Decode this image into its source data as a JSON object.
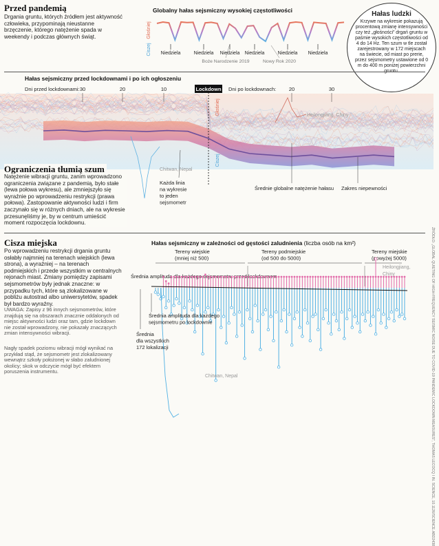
{
  "sections": {
    "pandemic": {
      "title": "Przed pandemią",
      "text": "Drgania gruntu, których źródłem jest aktywność człowieka, przypominają nieustanne brzęczenie, którego natężenie spada w weekendy i podczas głównych świąt."
    },
    "quiet": {
      "title": "Ograniczenia tłumią szum",
      "text": "Natężenie wibracji gruntu, zanim wprowadzono ograniczenia związane z pandemią, było stałe (lewa połowa wykresu), ale zmniejszyło się wyraźnie po wprowadzeniu restrykcji (prawa połowa). Zastopowanie aktywności ludzi i firm zaczynało się w różnych dniach, ale na wykresie przesunęliśmy je, by w centrum umieścić moment rozpoczęcia lockdownu."
    },
    "city": {
      "title": "Cisza miejska",
      "text": "Po wprowadzeniu restrykcji drgania gruntu osłabły najmniej na terenach wiejskich (lewa strona), a wyraźniej – na terenach podmiejskich i przede wszystkim w centralnych rejonach miast. Zmiany pomiędzy zapisami sejsmometrów były jednak znaczne: w przypadku tych, które są zlokalizowane w pobliżu autostrad albo uniwersytetów, spadek był bardzo wyraźny.",
      "note1": "UWAGA: Zapisy z 96 innych sejsmometrów, które znajdują się na obszarach znacznie oddalonych od miejsc aktywności ludzi oraz tam, gdzie lockdown nie został wprowadzony, nie pokazały znaczących zmian intensywności wibracji.",
      "note2": "Nagły spadek poziomu wibracji mógł wynikać na przykład stąd, że sejsmometr jest zlokalizowany wewnątrz szkoły położonej w słabo zaludnionej okolicy; skok w odczycie mógł być efektem poruszenia instrumentu."
    }
  },
  "human_noise": {
    "title": "Hałas ludzki",
    "text": "Krzywe na wykresie pokazują procentową zmianę intensywności czy też „głośności” drgań gruntu w paśmie wysokich częstotliwości od 4 do 14 Hz. Ten szum w tle został zarejestrowany w 172 miejscach na świecie, od miast po prerie, przez sejsmometry ustawione od 0 m do 400 m poniżej powierzchni gruntu."
  },
  "source": "ŹRÓDŁO: „GLOBAL QUIETING OF HIGH-FREQUENCY SEISMIC NOISE DUE TO COVID-19 PANDEMIC LOCKDOWN MEASURES”, THOMAS LECOCQ I IN. SCIENCE, 10.1126/SCIENCE.ABD2438",
  "chart_data": [
    {
      "type": "line",
      "title": "Globalny hałas sejsmiczny wysokiej częstotliwości",
      "ylabel_top": "Głośniej",
      "ylabel_bottom": "Ciszej",
      "x_labels": [
        "Niedziela",
        "Niedziela",
        "Niedziela",
        "Niedziela",
        "Niedziela",
        "Niedziela"
      ],
      "annotations": [
        "Boże Narodzenie 2019",
        "Nowy Rok 2020"
      ],
      "series": [
        {
          "values": [
            0.8,
            0.85,
            0.82,
            0.2,
            0.85,
            0.83,
            0.84,
            0.2,
            0.82,
            0.84,
            0.8,
            0.25,
            0.78,
            0.62,
            0.28,
            0.7,
            0.72,
            0.3,
            0.15,
            0.65,
            0.8,
            0.2,
            0.82,
            0.85,
            0.83,
            0.2,
            0.84,
            0.82,
            0.8,
            0.2,
            0.82,
            0.84
          ]
        }
      ]
    },
    {
      "type": "line",
      "title": "Hałas sejsmiczny przed lockdownami i po ich ogłoszeniu",
      "x_label_before": "Dni przed lockdownami:",
      "x_label_after": "Dni po lockdownach:",
      "x_ticks_before": [
        "30",
        "20",
        "10"
      ],
      "x_ticks_after": [
        "20",
        "30"
      ],
      "center_label": "Lockdown",
      "ylabel_top": "Głośniej",
      "ylabel_bottom": "Ciszej",
      "annotations": [
        "Heilongjiang, Chiny",
        "Chitwan, Nepal",
        "Każda linia na wykresie to jeden sejsmometr",
        "Średnie globalne natężenie hałasu",
        "Zakres niepewności"
      ],
      "series": [
        {
          "name": "Średnie globalne natężenie hałasu",
          "x": [
            -40,
            -35,
            -30,
            -25,
            -20,
            -15,
            -10,
            -5,
            0,
            5,
            10,
            15,
            20,
            25,
            30,
            35,
            40,
            45
          ],
          "values": [
            0,
            0.5,
            -0.5,
            0.3,
            0,
            -0.5,
            0.2,
            -0.3,
            -5,
            -12,
            -15,
            -16,
            -17,
            -16,
            -18,
            -17,
            -16,
            -17
          ]
        }
      ]
    },
    {
      "type": "bar",
      "title": "Hałas sejsmiczny w zależności od gęstości zaludnienia",
      "subtitle": "(liczba osób na km²)",
      "groups": [
        "Tereny wiejskie (mniej niż 500)",
        "Tereny podmiejskie (od 500 do 5000)",
        "Tereny miejskie (powyżej 5000)"
      ],
      "annotations": [
        "Średnia amplituda dla każdego sejsmometru przed lockdownem",
        "Średnia amplituda dla każdego sejsmometru po lockdownie",
        "Średnia dla wszystkich 172 lokalizacji",
        "Heilongjiang, Chiny",
        "Chitwan, Nepal"
      ],
      "series": [
        {
          "name": "Średnia amplituda dla każdego sejsmometru przed lockdownem",
          "values": [
            0,
            0,
            0,
            0.5,
            0.3,
            0.2,
            0.5,
            0.5,
            0.5,
            0.5,
            0.5,
            0.5,
            0.5,
            0.5,
            0.5,
            0.5,
            0.5,
            0.5,
            0.5,
            0.6,
            0.5,
            0.5,
            0.5,
            0.5,
            0.5,
            0.5,
            0.5,
            0.5,
            0.5,
            0.5,
            0.5,
            0.5,
            0.5,
            0.5,
            0.5,
            0.5,
            0.5,
            0.5,
            0.5,
            0.5,
            0.5,
            0.5,
            0.5,
            0.5,
            0.5,
            0.5,
            0.5,
            0.5,
            0.5,
            0.5,
            0.5,
            0.5,
            0.5,
            0.5,
            0.5,
            0.5,
            0.5,
            0.5,
            0.5,
            0.5,
            0.5,
            0.5,
            0.5,
            0.5,
            0.5,
            0.5,
            0.5,
            0.5,
            0.5,
            0.5,
            0.5,
            0.5,
            0.5,
            0.5,
            0.5,
            0.5,
            0.5,
            0.5,
            0.5,
            0.5,
            0.5,
            0.5,
            0.5,
            0.5,
            0.5,
            0.5,
            0.5,
            0.5,
            0.5,
            0.5,
            0.5,
            0.5,
            0.5,
            0.5,
            0.5,
            0.5
          ]
        },
        {
          "name": "Średnia amplituda dla każdego sejsmometru po lockdownie",
          "values": [
            -0.2,
            -0.3,
            -0.5,
            -0.4,
            -0.9,
            -0.6,
            -1.2,
            -0.8,
            -0.5,
            -0.7,
            -1.4,
            -0.9,
            -1.6,
            -0.6,
            -1.0,
            -2.0,
            -0.8,
            -1.3,
            -3.0,
            -1.1,
            -0.9,
            -1.5,
            -1.2,
            -4.2,
            -1.0,
            -1.8,
            -1.3,
            -2.5,
            -1.6,
            -0.9,
            -1.2,
            -2.2,
            -1.1,
            -1.7,
            -3.2,
            -1.0,
            -1.4,
            -2.0,
            -0.8,
            -1.5,
            -2.8,
            -1.2,
            -1.0,
            -1.9,
            -1.3,
            -2.4,
            -1.1,
            -3.6,
            -1.5,
            -1.0,
            -2.0,
            -1.2,
            -2.6,
            -1.4,
            -1.1,
            -1.8,
            -2.2,
            -1.0,
            -1.6,
            -2.4,
            -1.3,
            -1.2,
            -1.9,
            -2.8,
            -1.4,
            -1.0,
            -1.6,
            -2.1,
            -1.2,
            -1.5,
            -1.9,
            -1.1,
            -2.3,
            -1.4,
            -1.0,
            -1.8,
            -1.3,
            -1.6,
            -2.0,
            -1.2,
            -1.5,
            -1.1,
            -1.7,
            -1.3,
            -2.1,
            -1.0,
            -1.6,
            -1.2,
            -1.8,
            -1.4,
            -1.1,
            -1.5,
            -1.0,
            -1.3,
            -1.2,
            -1.4
          ]
        }
      ]
    }
  ]
}
